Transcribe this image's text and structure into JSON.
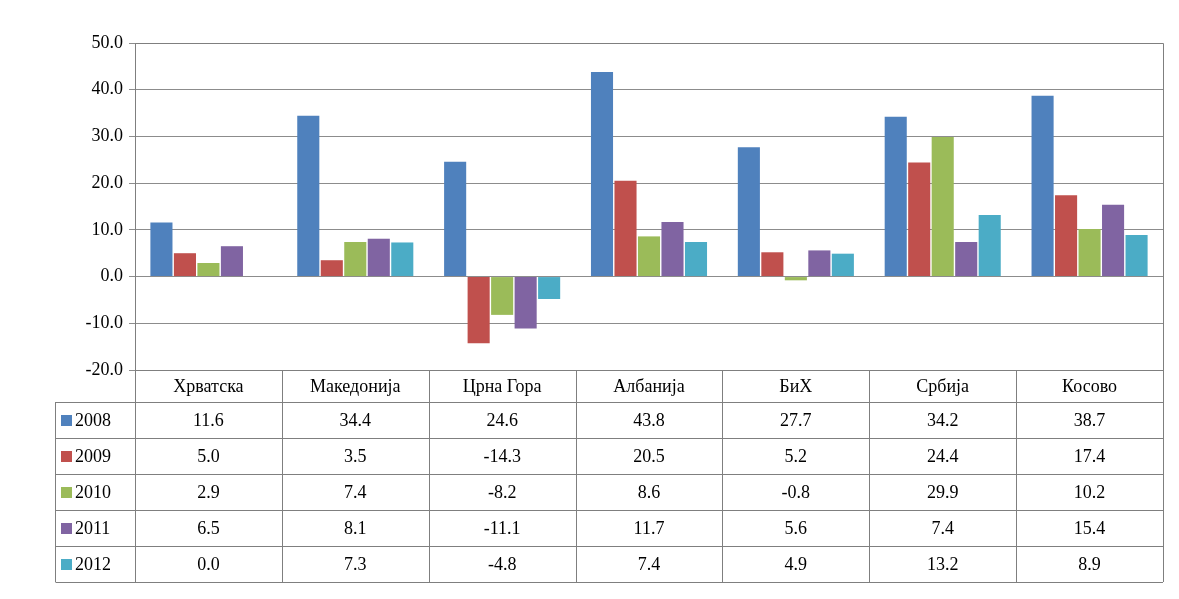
{
  "chart_data": {
    "type": "bar",
    "categories": [
      "Хрватска",
      "Македонија",
      "Црна Гора",
      "Албанија",
      "БиХ",
      "Србија",
      "Косово"
    ],
    "series": [
      {
        "name": "2008",
        "color": "#4f81bd",
        "values": [
          11.6,
          34.4,
          24.6,
          43.8,
          27.7,
          34.2,
          38.7
        ],
        "value_labels": [
          "11.6",
          "34.4",
          "24.6",
          "43.8",
          "27.7",
          "34.2",
          "38.7"
        ]
      },
      {
        "name": "2009",
        "color": "#c0504d",
        "values": [
          5.0,
          3.5,
          -14.3,
          20.5,
          5.2,
          24.4,
          17.4
        ],
        "value_labels": [
          "5.0",
          "3.5",
          "-14.3",
          "20.5",
          "5.2",
          "24.4",
          "17.4"
        ]
      },
      {
        "name": "2010",
        "color": "#9bbb59",
        "values": [
          2.9,
          7.4,
          -8.2,
          8.6,
          -0.8,
          29.9,
          10.2
        ],
        "value_labels": [
          "2.9",
          "7.4",
          "-8.2",
          "8.6",
          "-0.8",
          "29.9",
          "10.2"
        ]
      },
      {
        "name": "2011",
        "color": "#8064a2",
        "values": [
          6.5,
          8.1,
          -11.1,
          11.7,
          5.6,
          7.4,
          15.4
        ],
        "value_labels": [
          "6.5",
          "8.1",
          "-11.1",
          "11.7",
          "5.6",
          "7.4",
          "15.4"
        ]
      },
      {
        "name": "2012",
        "color": "#4bacc6",
        "values": [
          0.0,
          7.3,
          -4.8,
          7.4,
          4.9,
          13.2,
          8.9
        ],
        "value_labels": [
          "0.0",
          "7.3",
          "-4.8",
          "7.4",
          "4.9",
          "13.2",
          "8.9"
        ]
      }
    ],
    "ylim": [
      -20,
      50
    ],
    "yticks": [
      {
        "value": -20,
        "label": "-20.0"
      },
      {
        "value": -10,
        "label": "-10.0"
      },
      {
        "value": 0,
        "label": "0.0"
      },
      {
        "value": 10,
        "label": "10.0"
      },
      {
        "value": 20,
        "label": "20.0"
      },
      {
        "value": 30,
        "label": "30.0"
      },
      {
        "value": 40,
        "label": "40.0"
      },
      {
        "value": 50,
        "label": "50.0"
      }
    ],
    "grid": "y",
    "legend": "bottom left"
  }
}
